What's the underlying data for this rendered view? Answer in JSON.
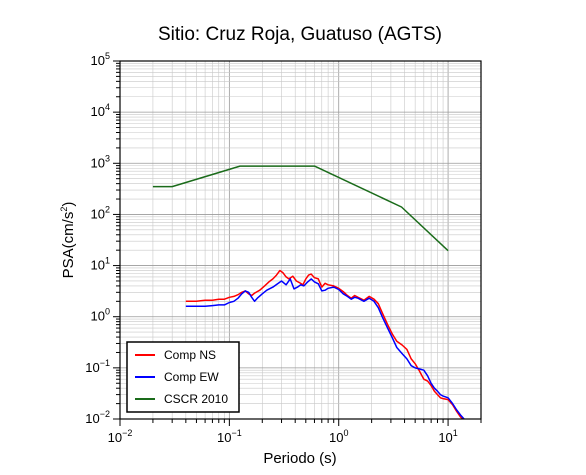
{
  "chart_data": {
    "type": "line",
    "title": "Sitio: Cruz Roja, Guatuso (AGTS)",
    "xlabel": "Periodo (s)",
    "ylabel_base": "PSA(cm/s",
    "ylabel_exp": "2",
    "ylabel_end": ")",
    "x_scale": "log",
    "y_scale": "log",
    "xlim": [
      0.01,
      20
    ],
    "ylim": [
      0.01,
      100000
    ],
    "grid": true,
    "legend_position": "bottom-left",
    "x_ticks": [
      {
        "base": "10",
        "exp": "−2",
        "value": 0.01
      },
      {
        "base": "10",
        "exp": "−1",
        "value": 0.1
      },
      {
        "base": "10",
        "exp": "0",
        "value": 1
      },
      {
        "base": "10",
        "exp": "1",
        "value": 10
      }
    ],
    "y_ticks": [
      {
        "base": "10",
        "exp": "−2",
        "value": 0.01
      },
      {
        "base": "10",
        "exp": "−1",
        "value": 0.1
      },
      {
        "base": "10",
        "exp": "0",
        "value": 1
      },
      {
        "base": "10",
        "exp": "1",
        "value": 10
      },
      {
        "base": "10",
        "exp": "2",
        "value": 100
      },
      {
        "base": "10",
        "exp": "3",
        "value": 1000
      },
      {
        "base": "10",
        "exp": "4",
        "value": 10000
      },
      {
        "base": "10",
        "exp": "5",
        "value": 100000
      }
    ],
    "series": [
      {
        "name": "Comp NS",
        "color": "#ff0000",
        "points": [
          [
            0.04,
            2.0
          ],
          [
            0.05,
            2.0
          ],
          [
            0.06,
            2.1
          ],
          [
            0.07,
            2.1
          ],
          [
            0.08,
            2.2
          ],
          [
            0.09,
            2.2
          ],
          [
            0.1,
            2.4
          ],
          [
            0.11,
            2.5
          ],
          [
            0.12,
            2.7
          ],
          [
            0.13,
            3.0
          ],
          [
            0.14,
            3.2
          ],
          [
            0.15,
            2.8
          ],
          [
            0.16,
            2.6
          ],
          [
            0.17,
            2.9
          ],
          [
            0.19,
            3.3
          ],
          [
            0.21,
            4.0
          ],
          [
            0.23,
            4.8
          ],
          [
            0.25,
            5.5
          ],
          [
            0.27,
            6.5
          ],
          [
            0.29,
            8.0
          ],
          [
            0.31,
            7.2
          ],
          [
            0.33,
            6.0
          ],
          [
            0.35,
            5.5
          ],
          [
            0.38,
            6.2
          ],
          [
            0.41,
            5.0
          ],
          [
            0.44,
            4.6
          ],
          [
            0.47,
            4.2
          ],
          [
            0.5,
            5.5
          ],
          [
            0.53,
            6.5
          ],
          [
            0.56,
            6.8
          ],
          [
            0.6,
            5.8
          ],
          [
            0.65,
            5.5
          ],
          [
            0.7,
            3.8
          ],
          [
            0.75,
            4.5
          ],
          [
            0.8,
            4.2
          ],
          [
            0.9,
            4.0
          ],
          [
            1.0,
            3.6
          ],
          [
            1.1,
            3.1
          ],
          [
            1.2,
            2.6
          ],
          [
            1.3,
            2.3
          ],
          [
            1.4,
            2.6
          ],
          [
            1.5,
            2.4
          ],
          [
            1.7,
            2.1
          ],
          [
            1.9,
            2.5
          ],
          [
            2.1,
            2.2
          ],
          [
            2.3,
            1.8
          ],
          [
            2.5,
            1.2
          ],
          [
            2.8,
            0.7
          ],
          [
            3.1,
            0.45
          ],
          [
            3.4,
            0.33
          ],
          [
            3.8,
            0.28
          ],
          [
            4.2,
            0.23
          ],
          [
            4.6,
            0.15
          ],
          [
            5.0,
            0.12
          ],
          [
            5.5,
            0.085
          ],
          [
            6.0,
            0.06
          ],
          [
            6.5,
            0.055
          ],
          [
            7.0,
            0.045
          ],
          [
            7.5,
            0.035
          ],
          [
            8.0,
            0.03
          ],
          [
            8.5,
            0.026
          ],
          [
            9.0,
            0.025
          ],
          [
            10.0,
            0.024
          ],
          [
            11.0,
            0.019
          ],
          [
            12.0,
            0.014
          ],
          [
            13.0,
            0.011
          ],
          [
            14.0,
            0.0095
          ]
        ]
      },
      {
        "name": "Comp EW",
        "color": "#0000ff",
        "points": [
          [
            0.04,
            1.6
          ],
          [
            0.05,
            1.6
          ],
          [
            0.06,
            1.6
          ],
          [
            0.07,
            1.65
          ],
          [
            0.08,
            1.7
          ],
          [
            0.09,
            1.7
          ],
          [
            0.1,
            1.9
          ],
          [
            0.11,
            2.0
          ],
          [
            0.12,
            2.3
          ],
          [
            0.13,
            2.8
          ],
          [
            0.14,
            3.2
          ],
          [
            0.15,
            3.0
          ],
          [
            0.16,
            2.4
          ],
          [
            0.17,
            2.0
          ],
          [
            0.18,
            2.3
          ],
          [
            0.2,
            2.8
          ],
          [
            0.22,
            3.3
          ],
          [
            0.25,
            3.8
          ],
          [
            0.28,
            4.5
          ],
          [
            0.3,
            5.0
          ],
          [
            0.33,
            4.2
          ],
          [
            0.36,
            5.5
          ],
          [
            0.39,
            3.5
          ],
          [
            0.42,
            3.8
          ],
          [
            0.45,
            4.2
          ],
          [
            0.48,
            4.0
          ],
          [
            0.52,
            4.8
          ],
          [
            0.56,
            5.5
          ],
          [
            0.6,
            4.8
          ],
          [
            0.65,
            4.4
          ],
          [
            0.7,
            3.2
          ],
          [
            0.75,
            3.3
          ],
          [
            0.8,
            3.6
          ],
          [
            0.9,
            3.8
          ],
          [
            1.0,
            3.4
          ],
          [
            1.1,
            2.8
          ],
          [
            1.2,
            2.5
          ],
          [
            1.3,
            2.2
          ],
          [
            1.4,
            2.4
          ],
          [
            1.5,
            2.3
          ],
          [
            1.7,
            2.0
          ],
          [
            1.9,
            2.3
          ],
          [
            2.1,
            2.0
          ],
          [
            2.3,
            1.5
          ],
          [
            2.5,
            1.0
          ],
          [
            2.8,
            0.6
          ],
          [
            3.1,
            0.38
          ],
          [
            3.4,
            0.25
          ],
          [
            3.8,
            0.19
          ],
          [
            4.2,
            0.15
          ],
          [
            4.6,
            0.11
          ],
          [
            5.0,
            0.1
          ],
          [
            5.5,
            0.095
          ],
          [
            6.0,
            0.09
          ],
          [
            6.5,
            0.07
          ],
          [
            7.0,
            0.05
          ],
          [
            7.5,
            0.04
          ],
          [
            8.0,
            0.035
          ],
          [
            8.5,
            0.03
          ],
          [
            9.0,
            0.028
          ],
          [
            10.0,
            0.026
          ],
          [
            11.0,
            0.02
          ],
          [
            12.0,
            0.015
          ],
          [
            13.0,
            0.012
          ],
          [
            14.0,
            0.01
          ]
        ]
      },
      {
        "name": "CSCR 2010",
        "color": "#1a6b1a",
        "points": [
          [
            0.02,
            350
          ],
          [
            0.03,
            350
          ],
          [
            0.125,
            880
          ],
          [
            0.6,
            880
          ],
          [
            3.75,
            140
          ],
          [
            10.0,
            19.5
          ]
        ]
      }
    ]
  }
}
